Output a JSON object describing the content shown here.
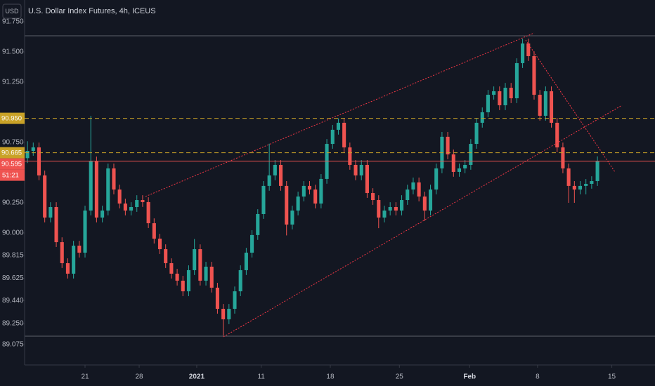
{
  "chart_data": {
    "type": "candlestick",
    "title": "U.S. Dollar Index Futures, 4h, ICEUS",
    "currency": "USD",
    "up_color": "#26a69a",
    "down_color": "#ef5350",
    "open": [
      90.62,
      90.68,
      90.709,
      90.477,
      90.128,
      90.215,
      89.924,
      89.75,
      89.663,
      89.895,
      89.837,
      90.186,
      90.593,
      90.128,
      90.186,
      90.535,
      90.36,
      90.244,
      90.186,
      90.215,
      90.273,
      90.256,
      90.081,
      89.953,
      89.866,
      89.75,
      89.663,
      89.605,
      89.517,
      89.692,
      89.866,
      89.605,
      89.721,
      89.547,
      89.372,
      89.285,
      89.372,
      89.517,
      89.692,
      89.837,
      89.983,
      90.157,
      90.39,
      90.477,
      90.564,
      90.39,
      90.07,
      90.186,
      90.302,
      90.39,
      90.36,
      90.244,
      90.448,
      90.738,
      90.855,
      90.913,
      90.709,
      90.564,
      90.477,
      90.564,
      90.331,
      90.273,
      90.128,
      90.186,
      90.215,
      90.186,
      90.273,
      90.36,
      90.419,
      90.302,
      90.186,
      90.36,
      90.535,
      90.797,
      90.651,
      90.506,
      90.535,
      90.564,
      90.738,
      90.913,
      91.0,
      91.145,
      91.174,
      91.058,
      91.203,
      91.116,
      91.407,
      91.57,
      91.465,
      91.145,
      90.971,
      91.174,
      90.913,
      90.709,
      90.535,
      90.39,
      90.36,
      90.39,
      90.407,
      90.43
    ],
    "high": [
      90.76,
      90.749,
      90.749,
      90.517,
      90.255,
      90.255,
      89.964,
      89.79,
      89.935,
      89.935,
      90.226,
      90.97,
      90.633,
      90.226,
      90.575,
      90.575,
      90.4,
      90.284,
      90.255,
      90.313,
      90.313,
      90.296,
      90.121,
      89.993,
      89.906,
      89.79,
      89.703,
      89.645,
      89.732,
      89.95,
      89.906,
      89.761,
      89.761,
      89.587,
      89.412,
      89.412,
      89.557,
      89.732,
      89.877,
      90.023,
      90.197,
      90.43,
      90.74,
      90.604,
      90.604,
      90.43,
      90.226,
      90.342,
      90.43,
      90.43,
      90.4,
      90.488,
      90.778,
      90.895,
      90.95,
      90.953,
      90.749,
      90.604,
      90.604,
      90.604,
      90.371,
      90.313,
      90.226,
      90.255,
      90.255,
      90.313,
      90.4,
      90.459,
      90.459,
      90.342,
      90.4,
      90.575,
      90.837,
      90.837,
      90.691,
      90.575,
      90.604,
      90.778,
      90.953,
      91.04,
      91.185,
      91.214,
      91.214,
      91.243,
      91.243,
      91.447,
      91.61,
      91.61,
      91.505,
      91.185,
      91.214,
      91.214,
      90.953,
      90.749,
      90.575,
      90.43,
      90.43,
      90.447,
      90.47,
      90.635
    ],
    "low": [
      90.58,
      90.64,
      90.437,
      90.088,
      90.088,
      89.884,
      89.71,
      89.623,
      89.623,
      89.797,
      89.797,
      90.146,
      90.088,
      90.088,
      90.146,
      90.32,
      90.204,
      90.146,
      90.146,
      90.175,
      90.216,
      90.041,
      89.913,
      89.826,
      89.71,
      89.623,
      89.565,
      89.477,
      89.477,
      89.652,
      89.565,
      89.565,
      89.507,
      89.332,
      89.15,
      89.245,
      89.332,
      89.477,
      89.652,
      89.797,
      89.943,
      90.117,
      90.35,
      90.437,
      90.35,
      89.98,
      90.03,
      90.146,
      90.262,
      90.32,
      90.204,
      90.204,
      90.408,
      90.698,
      90.815,
      90.669,
      90.524,
      90.437,
      90.437,
      90.291,
      90.233,
      90.04,
      90.088,
      90.146,
      90.146,
      90.146,
      90.233,
      90.32,
      90.262,
      90.1,
      90.146,
      90.32,
      90.495,
      90.611,
      90.466,
      90.466,
      90.495,
      90.524,
      90.698,
      90.873,
      90.96,
      91.105,
      91.018,
      91.018,
      91.076,
      91.076,
      91.367,
      91.425,
      91.105,
      90.931,
      90.931,
      90.873,
      90.669,
      90.495,
      90.25,
      90.25,
      90.32,
      90.32,
      90.367,
      90.39
    ],
    "close": [
      90.68,
      90.709,
      90.477,
      90.128,
      90.215,
      89.924,
      89.75,
      89.663,
      89.895,
      89.837,
      90.186,
      90.593,
      90.128,
      90.186,
      90.535,
      90.36,
      90.244,
      90.186,
      90.215,
      90.273,
      90.256,
      90.081,
      89.953,
      89.866,
      89.75,
      89.663,
      89.605,
      89.517,
      89.692,
      89.866,
      89.605,
      89.721,
      89.547,
      89.372,
      89.285,
      89.372,
      89.517,
      89.692,
      89.837,
      89.983,
      90.157,
      90.39,
      90.477,
      90.564,
      90.39,
      90.07,
      90.186,
      90.302,
      90.39,
      90.36,
      90.244,
      90.448,
      90.738,
      90.855,
      90.913,
      90.709,
      90.564,
      90.477,
      90.564,
      90.331,
      90.273,
      90.128,
      90.186,
      90.215,
      90.186,
      90.273,
      90.36,
      90.419,
      90.302,
      90.186,
      90.36,
      90.535,
      90.797,
      90.651,
      90.506,
      90.535,
      90.564,
      90.738,
      90.913,
      91.0,
      91.145,
      91.174,
      91.058,
      91.203,
      91.116,
      91.407,
      91.57,
      91.465,
      91.145,
      90.971,
      91.174,
      90.913,
      90.709,
      90.535,
      90.39,
      90.36,
      90.39,
      90.407,
      90.43,
      90.595
    ],
    "xlim": [
      -0.5,
      109
    ],
    "xticks": [
      {
        "value": 10,
        "label": "21"
      },
      {
        "value": 19.4,
        "label": "28"
      },
      {
        "value": 29.4,
        "label": "2021"
      },
      {
        "value": 40.6,
        "label": "11"
      },
      {
        "value": 52.6,
        "label": "18"
      },
      {
        "value": 64.6,
        "label": "25"
      },
      {
        "value": 76.8,
        "label": "Feb"
      },
      {
        "value": 88.6,
        "label": "8"
      },
      {
        "value": 101.5,
        "label": "15"
      }
    ],
    "ylim": [
      88.907,
      91.93
    ],
    "yticks": [
      {
        "value": 91.75,
        "label": "91.750"
      },
      {
        "value": 91.5,
        "label": "91.500"
      },
      {
        "value": 91.25,
        "label": "91.250"
      },
      {
        "value": 90.75,
        "label": "90.750"
      },
      {
        "value": 90.25,
        "label": "90.250"
      },
      {
        "value": 90,
        "label": "90.000"
      },
      {
        "value": 89.815,
        "label": "89.815"
      },
      {
        "value": 89.625,
        "label": "89.625"
      },
      {
        "value": 89.44,
        "label": "89.440"
      },
      {
        "value": 89.25,
        "label": "89.250"
      },
      {
        "value": 89.075,
        "label": "89.075"
      }
    ],
    "price_lines": [
      {
        "value": 90.95,
        "label": "90.950",
        "color": "#c9a227",
        "style": "dashed"
      },
      {
        "value": 90.665,
        "label": "90.665",
        "color": "#c9a227",
        "style": "dashed"
      },
      {
        "value": 90.595,
        "label": "90.595",
        "color": "#ef5350",
        "style": "solid"
      }
    ],
    "countdown": "51:21"
  }
}
